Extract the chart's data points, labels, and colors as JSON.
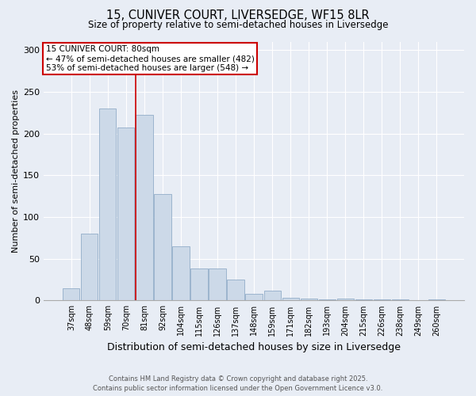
{
  "title_line1": "15, CUNIVER COURT, LIVERSEDGE, WF15 8LR",
  "title_line2": "Size of property relative to semi-detached houses in Liversedge",
  "categories": [
    "37sqm",
    "48sqm",
    "59sqm",
    "70sqm",
    "81sqm",
    "92sqm",
    "104sqm",
    "115sqm",
    "126sqm",
    "137sqm",
    "148sqm",
    "159sqm",
    "171sqm",
    "182sqm",
    "193sqm",
    "204sqm",
    "215sqm",
    "226sqm",
    "238sqm",
    "249sqm",
    "260sqm"
  ],
  "values": [
    15,
    80,
    230,
    207,
    222,
    127,
    65,
    38,
    38,
    25,
    8,
    12,
    3,
    2,
    1,
    2,
    1,
    1,
    1,
    0,
    1
  ],
  "bar_color": "#ccd9e8",
  "bar_edge_color": "#92adc8",
  "highlight_index": 4,
  "highlight_color": "#cc0000",
  "ylabel": "Number of semi-detached properties",
  "xlabel": "Distribution of semi-detached houses by size in Liversedge",
  "annotation_title": "15 CUNIVER COURT: 80sqm",
  "annotation_line1": "← 47% of semi-detached houses are smaller (482)",
  "annotation_line2": "53% of semi-detached houses are larger (548) →",
  "annotation_box_color": "#ffffff",
  "annotation_box_edge": "#cc0000",
  "footer_line1": "Contains HM Land Registry data © Crown copyright and database right 2025.",
  "footer_line2": "Contains public sector information licensed under the Open Government Licence v3.0.",
  "bg_color": "#e8edf5",
  "plot_bg_color": "#e8edf5",
  "ylim": [
    0,
    310
  ],
  "yticks": [
    0,
    50,
    100,
    150,
    200,
    250,
    300
  ],
  "grid_color": "#ffffff",
  "spine_color": "#aaaaaa"
}
